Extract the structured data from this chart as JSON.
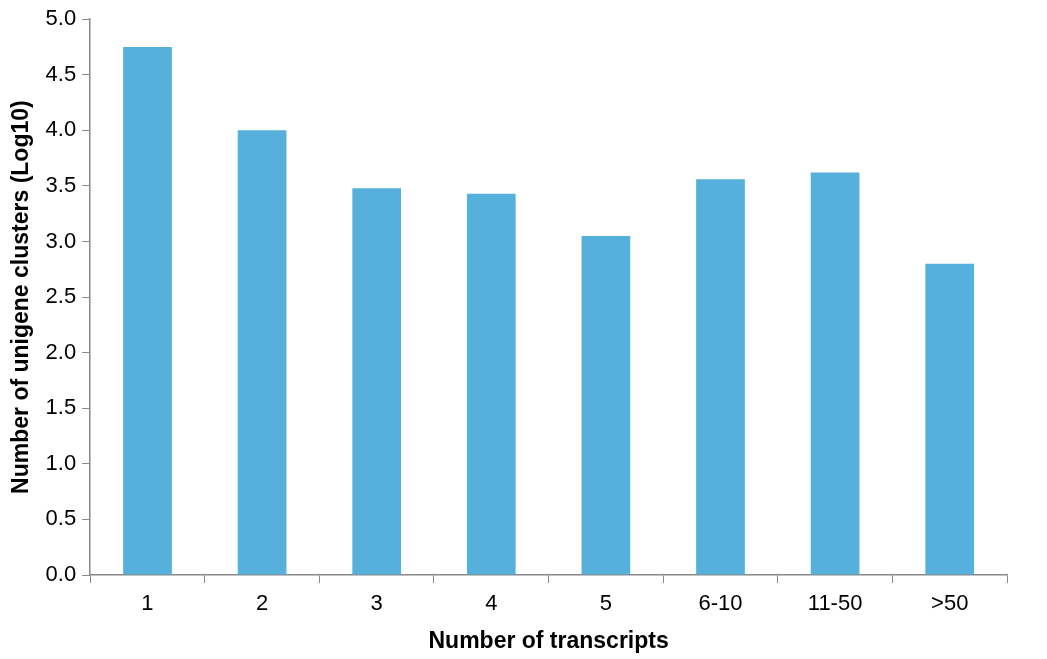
{
  "chart_data": {
    "type": "bar",
    "xlabel": "Number of transcripts",
    "ylabel": "Number of unigene clusters (Log10)",
    "categories": [
      "1",
      "2",
      "3",
      "4",
      "5",
      "6-10",
      "11-50",
      ">50"
    ],
    "values": [
      4.75,
      4.0,
      3.48,
      3.43,
      3.05,
      3.56,
      3.62,
      2.8
    ],
    "color": "#56b0dc",
    "ylim": [
      0,
      5
    ],
    "yticks": [
      {
        "value": 0,
        "label": "0.0"
      },
      {
        "value": 0.5,
        "label": "0.5"
      },
      {
        "value": 1,
        "label": "1.0"
      },
      {
        "value": 1.5,
        "label": "1.5"
      },
      {
        "value": 2,
        "label": "2.0"
      },
      {
        "value": 2.5,
        "label": "2.5"
      },
      {
        "value": 3,
        "label": "3.0"
      },
      {
        "value": 3.5,
        "label": "3.5"
      },
      {
        "value": 4,
        "label": "4.0"
      },
      {
        "value": 4.5,
        "label": "4.5"
      },
      {
        "value": 5,
        "label": "5.0"
      }
    ],
    "grid": false,
    "legend": false
  }
}
